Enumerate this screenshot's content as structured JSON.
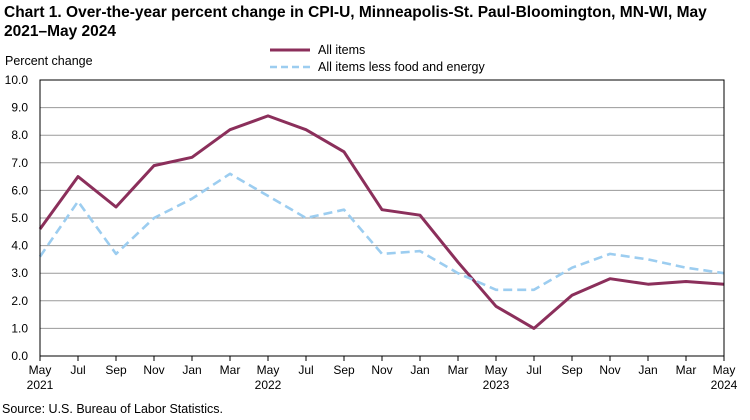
{
  "chart_data": {
    "type": "line",
    "title": "Chart 1. Over-the-year percent change in CPI-U, Minneapolis-St. Paul-Bloomington, MN-WI, May 2021–May 2024",
    "ylabel": "Percent change",
    "xlabel": "",
    "ylim": [
      0,
      10
    ],
    "yticks": [
      "0.0",
      "1.0",
      "2.0",
      "3.0",
      "4.0",
      "5.0",
      "6.0",
      "7.0",
      "8.0",
      "9.0",
      "10.0"
    ],
    "x": [
      "May 2021",
      "Jul 2021",
      "Sep 2021",
      "Nov 2021",
      "Jan 2022",
      "Mar 2022",
      "May 2022",
      "Jul 2022",
      "Sep 2022",
      "Nov 2022",
      "Jan 2023",
      "Mar 2023",
      "May 2023",
      "Jul 2023",
      "Sep 2023",
      "Nov 2023",
      "Jan 2024",
      "Mar 2024",
      "May 2024"
    ],
    "xtick_labels": [
      {
        "month": "May",
        "year": "2021"
      },
      {
        "month": "Jul",
        "year": ""
      },
      {
        "month": "Sep",
        "year": ""
      },
      {
        "month": "Nov",
        "year": ""
      },
      {
        "month": "Jan",
        "year": ""
      },
      {
        "month": "Mar",
        "year": ""
      },
      {
        "month": "May",
        "year": "2022"
      },
      {
        "month": "Jul",
        "year": ""
      },
      {
        "month": "Sep",
        "year": ""
      },
      {
        "month": "Nov",
        "year": ""
      },
      {
        "month": "Jan",
        "year": ""
      },
      {
        "month": "Mar",
        "year": ""
      },
      {
        "month": "May",
        "year": "2023"
      },
      {
        "month": "Jul",
        "year": ""
      },
      {
        "month": "Sep",
        "year": ""
      },
      {
        "month": "Nov",
        "year": ""
      },
      {
        "month": "Jan",
        "year": ""
      },
      {
        "month": "Mar",
        "year": ""
      },
      {
        "month": "May",
        "year": "2024"
      }
    ],
    "series": [
      {
        "name": "All items",
        "color": "#8B2F5B",
        "dash": "solid",
        "values": [
          4.6,
          6.5,
          5.4,
          6.9,
          7.2,
          8.2,
          8.7,
          8.2,
          7.4,
          5.3,
          5.1,
          3.4,
          1.8,
          1.0,
          2.2,
          2.8,
          2.6,
          2.7,
          2.6
        ]
      },
      {
        "name": "All items less food and energy",
        "color": "#9CCDF0",
        "dash": "dashed",
        "values": [
          3.6,
          5.6,
          3.7,
          5.0,
          5.7,
          6.6,
          5.8,
          5.0,
          5.3,
          3.7,
          3.8,
          3.0,
          2.4,
          2.4,
          3.2,
          3.7,
          3.5,
          3.2,
          3.0
        ]
      }
    ],
    "grid": true,
    "legend_position": "top-center"
  },
  "source": "Source: U.S. Bureau of Labor Statistics."
}
